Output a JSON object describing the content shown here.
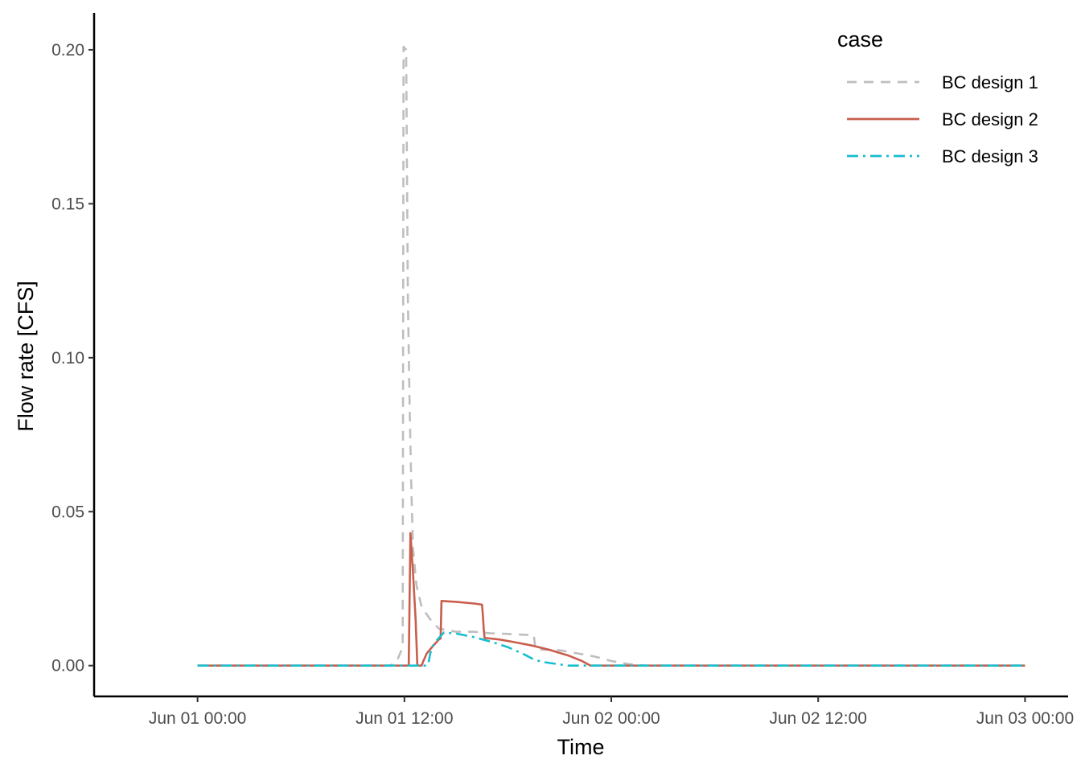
{
  "chart_data": {
    "type": "line",
    "xlabel": "Time",
    "ylabel": "Flow rate [CFS]",
    "x_unit": "hours since Jun 01 00:00",
    "xlim": [
      -6.0,
      50.5
    ],
    "ylim": [
      -0.01,
      0.212
    ],
    "x_ticks": [
      {
        "value": 0,
        "label": "Jun 01 00:00"
      },
      {
        "value": 12,
        "label": "Jun 01 12:00"
      },
      {
        "value": 24,
        "label": "Jun 02 00:00"
      },
      {
        "value": 36,
        "label": "Jun 02 12:00"
      },
      {
        "value": 48,
        "label": "Jun 03 00:00"
      }
    ],
    "y_ticks": [
      {
        "value": 0.0,
        "label": "0.00"
      },
      {
        "value": 0.05,
        "label": "0.05"
      },
      {
        "value": 0.1,
        "label": "0.10"
      },
      {
        "value": 0.15,
        "label": "0.15"
      },
      {
        "value": 0.2,
        "label": "0.20"
      }
    ],
    "grid": false,
    "legend": {
      "title": "case",
      "position": "top-right"
    },
    "series": [
      {
        "name": "BC design 1",
        "color": "#bebebe",
        "dash": "dashed",
        "points": [
          [
            0,
            0
          ],
          [
            11.2,
            0
          ],
          [
            11.6,
            0.002
          ],
          [
            11.9,
            0.006
          ],
          [
            11.95,
            0.201
          ],
          [
            12.1,
            0.2
          ],
          [
            12.2,
            0.12
          ],
          [
            12.3,
            0.085
          ],
          [
            12.4,
            0.058
          ],
          [
            12.5,
            0.038
          ],
          [
            12.7,
            0.026
          ],
          [
            13.0,
            0.019
          ],
          [
            13.5,
            0.015
          ],
          [
            14.0,
            0.012
          ],
          [
            15.0,
            0.011
          ],
          [
            16.0,
            0.011
          ],
          [
            17.0,
            0.0105
          ],
          [
            18.0,
            0.0103
          ],
          [
            19.0,
            0.01
          ],
          [
            19.5,
            0.01
          ],
          [
            19.6,
            0.0055
          ],
          [
            20.0,
            0.0052
          ],
          [
            21.0,
            0.005
          ],
          [
            22.0,
            0.004
          ],
          [
            23.0,
            0.003
          ],
          [
            24.0,
            0.0015
          ],
          [
            25.0,
            0.0005
          ],
          [
            26.0,
            0
          ],
          [
            48,
            0
          ]
        ]
      },
      {
        "name": "BC design 2",
        "color": "#c95e4d",
        "dash": "solid",
        "points": [
          [
            0,
            0
          ],
          [
            12.25,
            0
          ],
          [
            12.35,
            0.043
          ],
          [
            12.5,
            0.03
          ],
          [
            12.65,
            0.015
          ],
          [
            12.75,
            0
          ],
          [
            13.0,
            0
          ],
          [
            13.1,
            0.0015
          ],
          [
            13.3,
            0.004
          ],
          [
            13.6,
            0.006
          ],
          [
            14.0,
            0.0085
          ],
          [
            14.1,
            0.0088
          ],
          [
            14.15,
            0.021
          ],
          [
            15.0,
            0.0207
          ],
          [
            16.0,
            0.0202
          ],
          [
            16.5,
            0.0198
          ],
          [
            16.55,
            0.0165
          ],
          [
            16.6,
            0.012
          ],
          [
            16.65,
            0.009
          ],
          [
            17.5,
            0.0085
          ],
          [
            18.5,
            0.0075
          ],
          [
            19.5,
            0.0064
          ],
          [
            20.5,
            0.005
          ],
          [
            21.5,
            0.0033
          ],
          [
            22.3,
            0.0015
          ],
          [
            22.8,
            0
          ],
          [
            48,
            0
          ]
        ]
      },
      {
        "name": "BC design 3",
        "color": "#17becf",
        "dash": "dashdot",
        "points": [
          [
            0,
            0
          ],
          [
            13.3,
            0
          ],
          [
            13.4,
            0.001
          ],
          [
            13.5,
            0.004
          ],
          [
            13.7,
            0.007
          ],
          [
            14.0,
            0.009
          ],
          [
            14.3,
            0.0108
          ],
          [
            15.0,
            0.0104
          ],
          [
            16.0,
            0.0093
          ],
          [
            17.0,
            0.0078
          ],
          [
            18.0,
            0.006
          ],
          [
            19.0,
            0.0035
          ],
          [
            19.5,
            0.002
          ],
          [
            20.0,
            0.0012
          ],
          [
            20.5,
            0.0008
          ],
          [
            21.0,
            0.0004
          ],
          [
            21.5,
            0
          ],
          [
            48,
            0
          ]
        ]
      }
    ]
  }
}
